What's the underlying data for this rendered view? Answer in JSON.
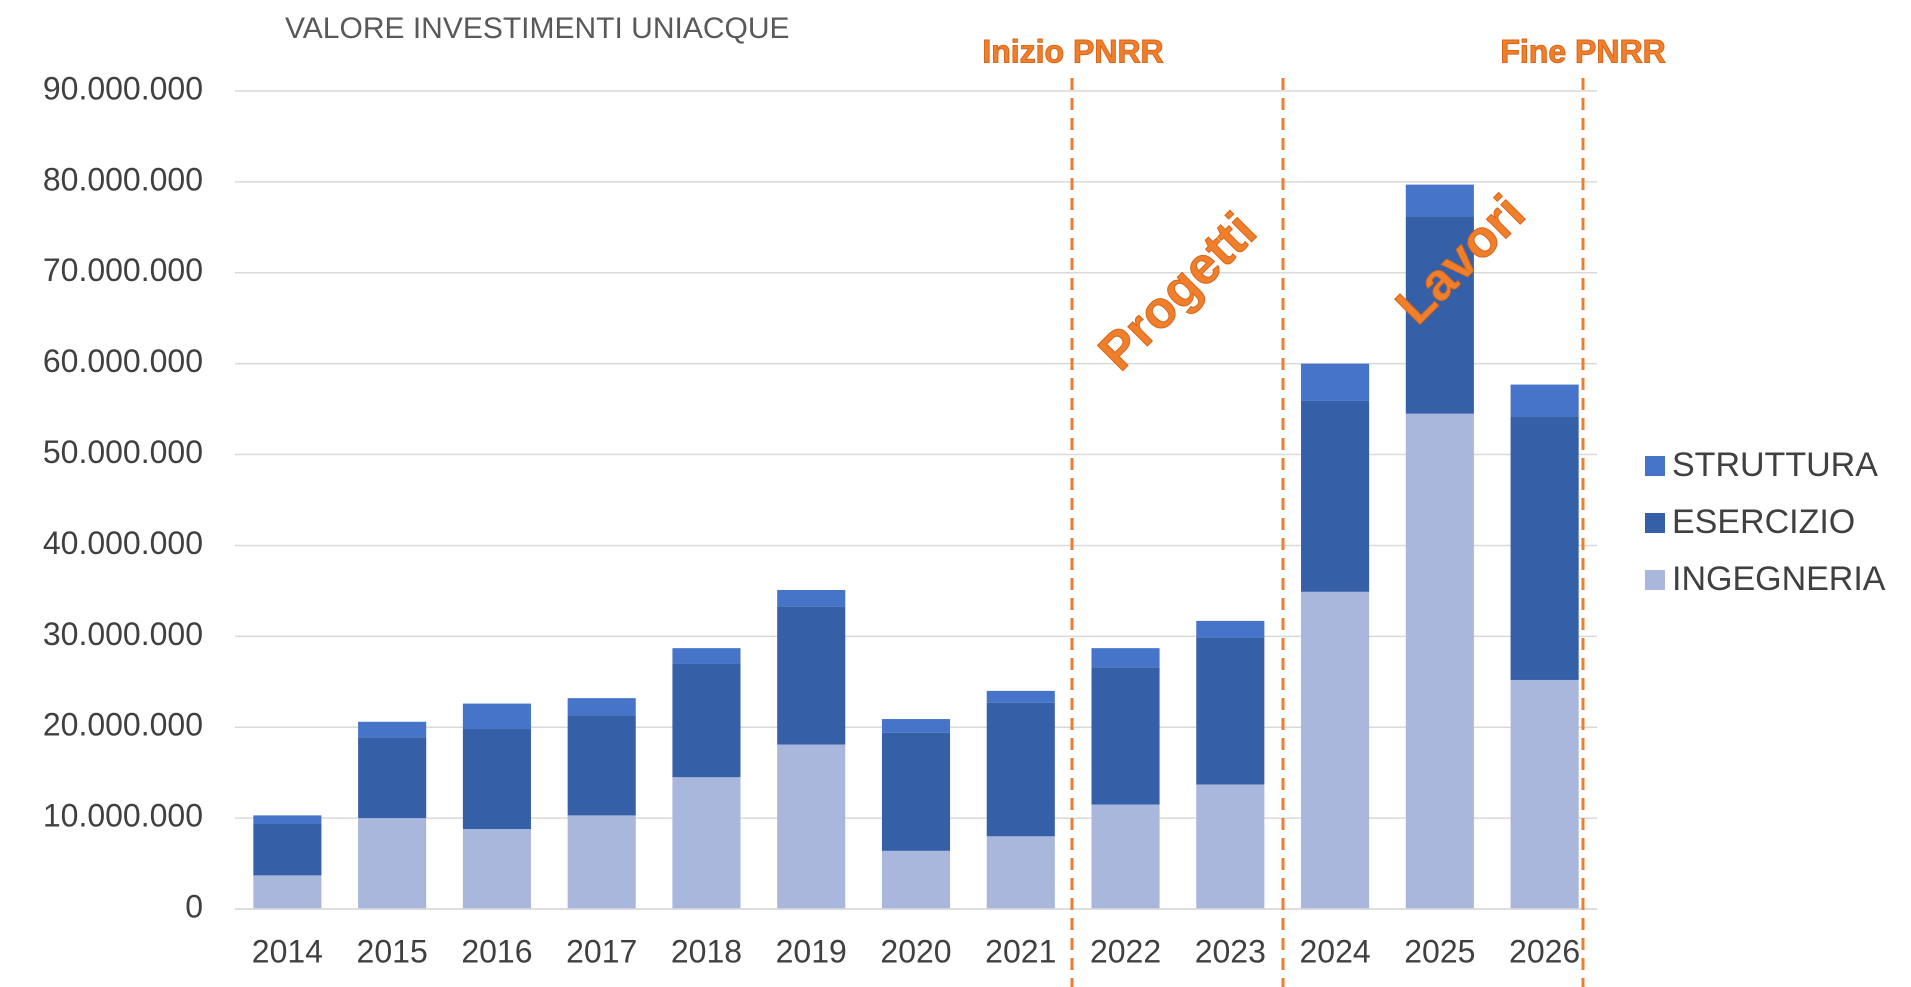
{
  "chart_data": {
    "type": "stacked_bar",
    "title": "VALORE INVESTIMENTI UNIACQUE",
    "categories": [
      "2014",
      "2015",
      "2016",
      "2017",
      "2018",
      "2019",
      "2020",
      "2021",
      "2022",
      "2023",
      "2024",
      "2025",
      "2026"
    ],
    "series": [
      {
        "name": "INGEGNERIA",
        "color": "#a9b7dc",
        "values": [
          3700000,
          10000000,
          8800000,
          10300000,
          14500000,
          18100000,
          6400000,
          8000000,
          11500000,
          13700000,
          34900000,
          54500000,
          25200000
        ]
      },
      {
        "name": "ESERCIZIO",
        "color": "#355fa6",
        "values": [
          5700000,
          8900000,
          11000000,
          11000000,
          12500000,
          15200000,
          13000000,
          14700000,
          15100000,
          16200000,
          21000000,
          21700000,
          29000000
        ]
      },
      {
        "name": "STRUTTURA",
        "color": "#4674c8",
        "values": [
          900000,
          1700000,
          2800000,
          1900000,
          1700000,
          1800000,
          1500000,
          1300000,
          2100000,
          1800000,
          4100000,
          3500000,
          3500000
        ]
      }
    ],
    "ylim": [
      0,
      90000000
    ],
    "yticks": [
      {
        "value": 0,
        "label": "0"
      },
      {
        "value": 10000000,
        "label": "10.000.000"
      },
      {
        "value": 20000000,
        "label": "20.000.000"
      },
      {
        "value": 30000000,
        "label": "30.000.000"
      },
      {
        "value": 40000000,
        "label": "40.000.000"
      },
      {
        "value": 50000000,
        "label": "50.000.000"
      },
      {
        "value": 60000000,
        "label": "60.000.000"
      },
      {
        "value": 70000000,
        "label": "70.000.000"
      },
      {
        "value": 80000000,
        "label": "80.000.000"
      },
      {
        "value": 90000000,
        "label": "90.000.000"
      }
    ],
    "grid": true,
    "legend": "right",
    "annotations": [
      {
        "text": "Inizio PNRR"
      },
      {
        "text": "Fine PNRR"
      },
      {
        "text": "Progetti"
      },
      {
        "text": "Lavori"
      }
    ]
  }
}
